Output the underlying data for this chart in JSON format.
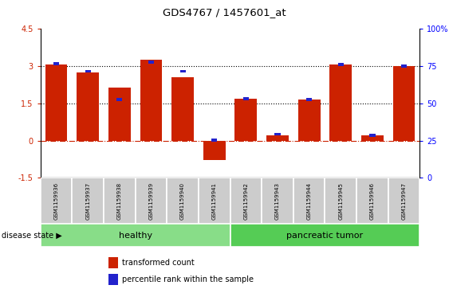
{
  "title": "GDS4767 / 1457601_at",
  "samples": [
    "GSM1159936",
    "GSM1159937",
    "GSM1159938",
    "GSM1159939",
    "GSM1159940",
    "GSM1159941",
    "GSM1159942",
    "GSM1159943",
    "GSM1159944",
    "GSM1159945",
    "GSM1159946",
    "GSM1159947"
  ],
  "transformed_count": [
    3.05,
    2.75,
    2.15,
    3.25,
    2.55,
    -0.8,
    1.7,
    0.2,
    1.65,
    3.05,
    0.2,
    3.0
  ],
  "percentile_rank_left": [
    3.15,
    2.85,
    1.72,
    3.22,
    2.85,
    -0.04,
    1.75,
    0.32,
    1.72,
    3.12,
    0.26,
    3.07
  ],
  "healthy_count": 6,
  "pancreatic_count": 6,
  "ylim": [
    -1.5,
    4.5
  ],
  "right_ylim": [
    0,
    100
  ],
  "right_yticks": [
    0,
    25,
    50,
    75,
    100
  ],
  "left_yticks": [
    -1.5,
    0.0,
    1.5,
    3.0,
    4.5
  ],
  "dotted_lines": [
    3.0,
    1.5
  ],
  "zero_line": 0.0,
  "bar_color_red": "#cc2200",
  "bar_color_blue": "#2222cc",
  "healthy_color": "#88dd88",
  "tumor_color": "#55cc55",
  "tick_label_bg": "#cccccc",
  "legend_red_label": "transformed count",
  "legend_blue_label": "percentile rank within the sample",
  "disease_state_label": "disease state",
  "healthy_label": "healthy",
  "tumor_label": "pancreatic tumor"
}
